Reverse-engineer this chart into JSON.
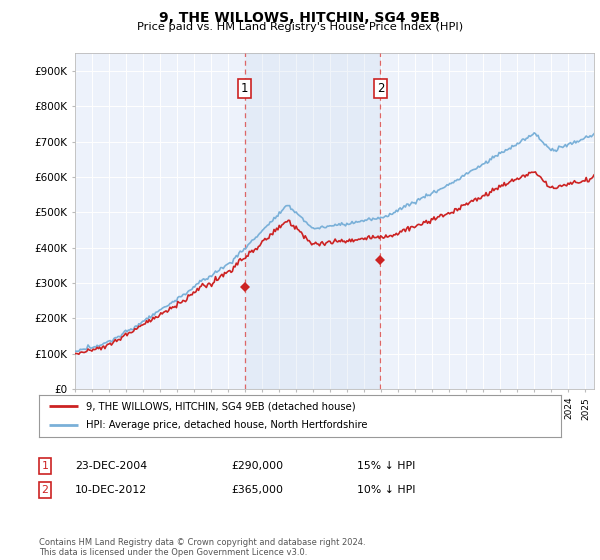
{
  "title": "9, THE WILLOWS, HITCHIN, SG4 9EB",
  "subtitle": "Price paid vs. HM Land Registry's House Price Index (HPI)",
  "ylim": [
    0,
    950000
  ],
  "yticks": [
    0,
    100000,
    200000,
    300000,
    400000,
    500000,
    600000,
    700000,
    800000,
    900000
  ],
  "ytick_labels": [
    "£0",
    "£100K",
    "£200K",
    "£300K",
    "£400K",
    "£500K",
    "£600K",
    "£700K",
    "£800K",
    "£900K"
  ],
  "bg_color": "#ffffff",
  "plot_bg_color": "#edf2fb",
  "grid_color": "#ffffff",
  "hpi_color": "#7ab0d8",
  "price_color": "#cc2222",
  "sale1_x": 2004.97,
  "sale1_y": 290000,
  "sale2_x": 2012.95,
  "sale2_y": 365000,
  "legend_label1": "9, THE WILLOWS, HITCHIN, SG4 9EB (detached house)",
  "legend_label2": "HPI: Average price, detached house, North Hertfordshire",
  "table_row1": [
    "1",
    "23-DEC-2004",
    "£290,000",
    "15% ↓ HPI"
  ],
  "table_row2": [
    "2",
    "10-DEC-2012",
    "£365,000",
    "10% ↓ HPI"
  ],
  "footnote": "Contains HM Land Registry data © Crown copyright and database right 2024.\nThis data is licensed under the Open Government Licence v3.0.",
  "xmin": 1995,
  "xmax": 2025.5
}
